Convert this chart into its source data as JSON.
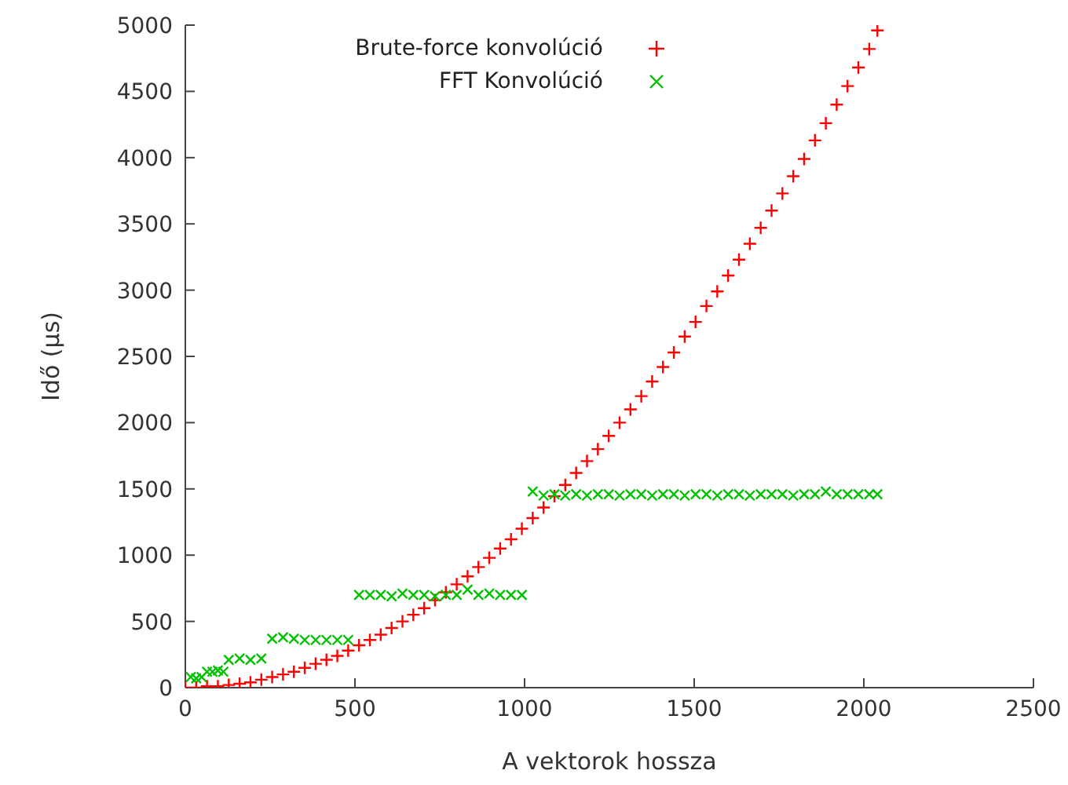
{
  "chart_data": {
    "type": "scatter",
    "xlabel": "A vektorok hossza",
    "ylabel": "Idő (µs)",
    "xlim": [
      0,
      2500
    ],
    "xticks": [
      0,
      500,
      1000,
      1500,
      2000,
      2500
    ],
    "ylim": [
      0,
      5000
    ],
    "yticks": [
      0,
      500,
      1000,
      1500,
      2000,
      2500,
      3000,
      3500,
      4000,
      4500,
      5000
    ],
    "grid": false,
    "legend": "top",
    "marker": "cross",
    "series": [
      {
        "name": "Brute-force konvolúció",
        "color": "#ff0000",
        "x": [
          0,
          32,
          64,
          96,
          128,
          160,
          192,
          224,
          256,
          288,
          320,
          352,
          384,
          416,
          448,
          480,
          512,
          544,
          576,
          608,
          640,
          672,
          704,
          736,
          768,
          800,
          832,
          864,
          896,
          928,
          960,
          992,
          1024,
          1056,
          1088,
          1120,
          1152,
          1184,
          1216,
          1248,
          1280,
          1312,
          1344,
          1376,
          1408,
          1440,
          1472,
          1504,
          1536,
          1568,
          1600,
          1632,
          1664,
          1696,
          1728,
          1760,
          1792,
          1824,
          1856,
          1888,
          1920,
          1952,
          1984,
          2016,
          2040
        ],
        "values": [
          0,
          0,
          10,
          10,
          20,
          30,
          40,
          60,
          80,
          100,
          120,
          150,
          180,
          210,
          240,
          280,
          320,
          360,
          400,
          450,
          500,
          550,
          600,
          660,
          720,
          780,
          840,
          910,
          980,
          1050,
          1120,
          1200,
          1280,
          1360,
          1445,
          1530,
          1620,
          1710,
          1800,
          1900,
          2000,
          2100,
          2200,
          2310,
          2420,
          2530,
          2650,
          2760,
          2880,
          2990,
          3110,
          3230,
          3350,
          3470,
          3600,
          3730,
          3860,
          3990,
          4130,
          4260,
          4400,
          4540,
          4680,
          4820,
          4960
        ]
      },
      {
        "name": "FFT Konvolúció",
        "color": "#00c000",
        "x": [
          16,
          32,
          48,
          64,
          80,
          96,
          112,
          128,
          160,
          192,
          224,
          256,
          288,
          320,
          352,
          384,
          416,
          448,
          480,
          512,
          544,
          576,
          608,
          640,
          672,
          704,
          736,
          768,
          800,
          832,
          864,
          896,
          928,
          960,
          992,
          1024,
          1056,
          1088,
          1120,
          1152,
          1184,
          1216,
          1248,
          1280,
          1312,
          1344,
          1376,
          1408,
          1440,
          1472,
          1504,
          1536,
          1568,
          1600,
          1632,
          1664,
          1696,
          1728,
          1760,
          1792,
          1824,
          1856,
          1888,
          1920,
          1952,
          1984,
          2016,
          2040
        ],
        "values": [
          80,
          70,
          80,
          120,
          120,
          130,
          120,
          210,
          220,
          210,
          220,
          370,
          380,
          370,
          360,
          360,
          360,
          360,
          360,
          700,
          700,
          700,
          690,
          710,
          700,
          700,
          690,
          700,
          700,
          740,
          700,
          710,
          700,
          700,
          700,
          1480,
          1450,
          1460,
          1450,
          1460,
          1450,
          1460,
          1460,
          1450,
          1460,
          1460,
          1450,
          1460,
          1460,
          1450,
          1460,
          1460,
          1450,
          1460,
          1460,
          1450,
          1460,
          1460,
          1460,
          1450,
          1460,
          1460,
          1480,
          1460,
          1460,
          1460,
          1460,
          1460
        ]
      }
    ]
  }
}
